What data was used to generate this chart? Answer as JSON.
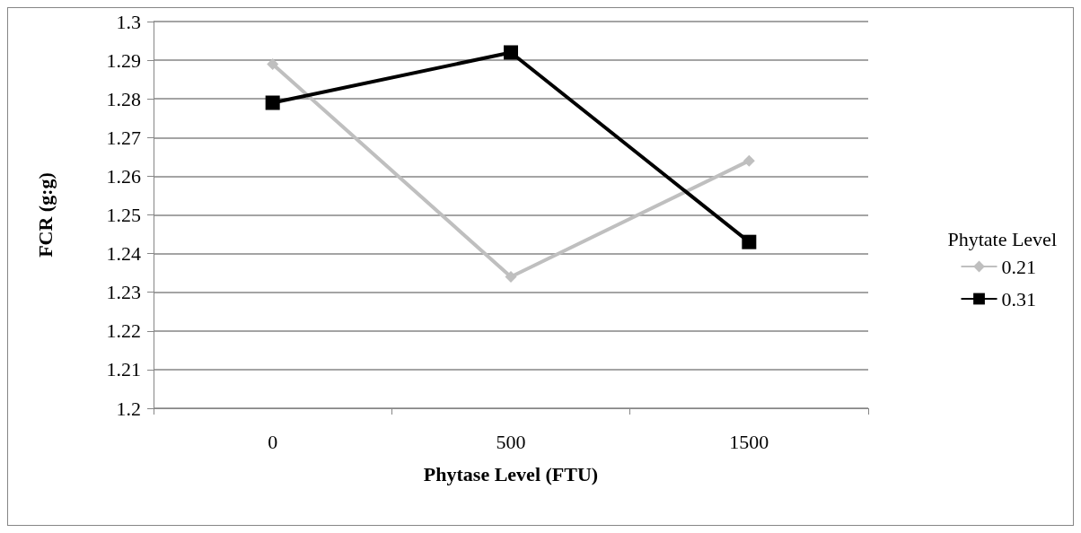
{
  "chart_data": {
    "type": "line",
    "xlabel": "Phytase Level (FTU)",
    "ylabel": "FCR (g:g)",
    "legend_title": "Phytate Level",
    "categories": [
      "0",
      "500",
      "1500"
    ],
    "series": [
      {
        "name": "0.21",
        "color": "#bfbfbf",
        "marker": "diamond",
        "values": [
          1.289,
          1.234,
          1.264
        ]
      },
      {
        "name": "0.31",
        "color": "#000000",
        "marker": "square",
        "values": [
          1.279,
          1.292,
          1.243
        ]
      }
    ],
    "ylim": [
      1.2,
      1.3
    ],
    "yticks": [
      1.2,
      1.21,
      1.22,
      1.23,
      1.24,
      1.25,
      1.26,
      1.27,
      1.28,
      1.29,
      1.3
    ],
    "grid": "y",
    "legend": "right"
  }
}
